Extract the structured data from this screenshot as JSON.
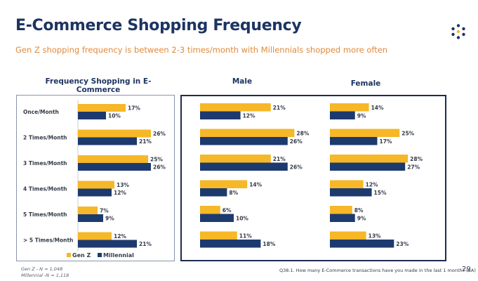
{
  "header": {
    "title": "E-Commerce Shopping Frequency",
    "subtitle": "Gen Z shopping frequency is between 2-3 times/month with Millennials shopped more often",
    "logo_icon": "dots-circle-logo-icon"
  },
  "colors": {
    "gen_z": "#f6b728",
    "millennial": "#1d3a6e",
    "title": "#1d3461",
    "subtitle": "#e08a3c"
  },
  "legend": {
    "gen_z": "Gen Z",
    "millennial": "Millennial"
  },
  "footer": {
    "note_line1": "Gen Z - N = 1,048",
    "note_line2": "Millennial -N = 1,118",
    "question": "Q38.1. How many E-Commerce transactions have you made in the last 1 month? (SA)",
    "page_number": "29"
  },
  "chart_data": [
    {
      "type": "bar",
      "orientation": "horizontal",
      "title": "Frequency Shopping in E-Commerce",
      "categories": [
        "Once/Month",
        "2 Times/Month",
        "3 Times/Month",
        "4 Times/Month",
        "5 Times/Month",
        "> 5 Times/Month"
      ],
      "series": [
        {
          "name": "Gen Z",
          "values": [
            17,
            26,
            25,
            13,
            7,
            12
          ]
        },
        {
          "name": "Millennial",
          "values": [
            10,
            21,
            26,
            12,
            9,
            21
          ]
        }
      ],
      "value_suffix": "%",
      "legend": "bottom",
      "grid": false
    },
    {
      "type": "bar",
      "orientation": "horizontal",
      "title": "Male",
      "categories": [
        "Once/Month",
        "2 Times/Month",
        "3 Times/Month",
        "4 Times/Month",
        "5 Times/Month",
        "> 5 Times/Month"
      ],
      "series": [
        {
          "name": "Gen Z",
          "values": [
            21,
            28,
            21,
            14,
            6,
            11
          ]
        },
        {
          "name": "Millennial",
          "values": [
            12,
            26,
            26,
            8,
            10,
            18
          ]
        }
      ],
      "value_suffix": "%",
      "grid": false
    },
    {
      "type": "bar",
      "orientation": "horizontal",
      "title": "Female",
      "categories": [
        "Once/Month",
        "2 Times/Month",
        "3 Times/Month",
        "4 Times/Month",
        "5 Times/Month",
        "> 5 Times/Month"
      ],
      "series": [
        {
          "name": "Gen Z",
          "values": [
            14,
            25,
            28,
            12,
            8,
            13
          ]
        },
        {
          "name": "Millennial",
          "values": [
            9,
            17,
            27,
            15,
            9,
            23
          ]
        }
      ],
      "value_suffix": "%",
      "grid": false
    }
  ]
}
